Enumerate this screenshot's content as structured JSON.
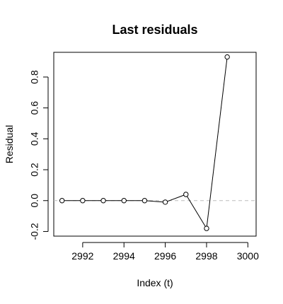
{
  "chart_data": {
    "type": "line",
    "title": "Last residuals",
    "xlabel": "Index (t)",
    "ylabel": "Residual",
    "xlim": [
      2990.6,
      3000.4
    ],
    "ylim": [
      -0.23,
      0.96
    ],
    "x_ticks": [
      2992,
      2994,
      2996,
      2998,
      3000
    ],
    "y_ticks": [
      -0.2,
      0.0,
      0.2,
      0.4,
      0.6,
      0.8
    ],
    "x_tick_labels": [
      "2992",
      "2994",
      "2996",
      "2998",
      "3000"
    ],
    "y_tick_labels": [
      "-0.2",
      "0.0",
      "0.2",
      "0.4",
      "0.6",
      "0.8"
    ],
    "reference_line": {
      "y": 0,
      "color": "#bdbdbd",
      "style": "dashed"
    },
    "grid": false,
    "legend": "none",
    "colors": {
      "line": "#000000",
      "point_fill": "#ffffff",
      "point_stroke": "#000000"
    },
    "series": [
      {
        "x": [
          2991,
          2992,
          2993,
          2994,
          2995,
          2996,
          2997,
          2998,
          2999
        ],
        "values": [
          0.0,
          0.0,
          0.0,
          0.0,
          0.0,
          -0.01,
          0.04,
          -0.18,
          0.93
        ]
      }
    ]
  }
}
